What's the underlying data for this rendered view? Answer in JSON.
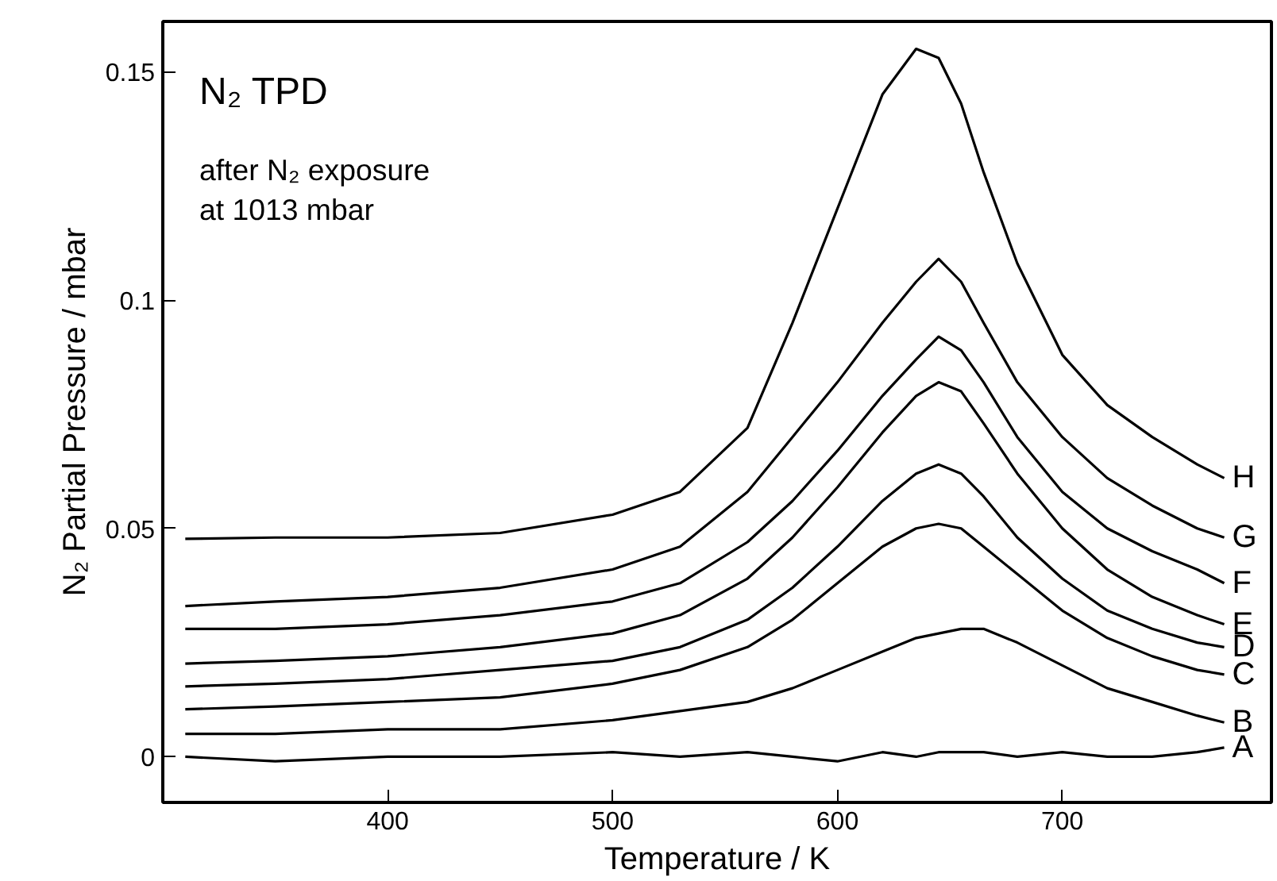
{
  "chart_data": {
    "type": "line",
    "xlabel": "Temperature / K",
    "ylabel": "N₂ Partial Pressure / mbar",
    "annotations": [
      "N₂ TPD",
      "after N₂ exposure",
      "at 1013 mbar"
    ],
    "x": [
      310,
      350,
      400,
      450,
      500,
      530,
      560,
      580,
      600,
      620,
      635,
      645,
      655,
      665,
      680,
      700,
      720,
      740,
      760,
      772
    ],
    "xlim": [
      300,
      793
    ],
    "xticks": [
      400,
      500,
      600,
      700
    ],
    "ylim": [
      -0.01,
      0.161
    ],
    "yticks": [
      0,
      0.05,
      {
        "value": 0.1,
        "label": "0.1"
      },
      0.15
    ],
    "grid": false,
    "legend": false,
    "line_style": "solid",
    "series": [
      {
        "name": "A",
        "color": "#000000",
        "values": [
          0,
          -0.001,
          0,
          0,
          0.001,
          0,
          0.001,
          0,
          -0.001,
          0.001,
          0,
          0.001,
          0.001,
          0.001,
          0,
          0.001,
          0,
          0,
          0.001,
          0.002
        ]
      },
      {
        "name": "B",
        "color": "#000000",
        "values": [
          0.005,
          0.005,
          0.006,
          0.006,
          0.008,
          0.01,
          0.012,
          0.015,
          0.019,
          0.023,
          0.026,
          0.027,
          0.028,
          0.028,
          0.025,
          0.02,
          0.015,
          0.012,
          0.009,
          0.0075
        ]
      },
      {
        "name": "C",
        "color": "#000000",
        "values": [
          0.0104,
          0.011,
          0.012,
          0.013,
          0.016,
          0.019,
          0.024,
          0.03,
          0.038,
          0.046,
          0.05,
          0.051,
          0.05,
          0.046,
          0.04,
          0.032,
          0.026,
          0.022,
          0.019,
          0.018
        ]
      },
      {
        "name": "D",
        "color": "#000000",
        "values": [
          0.0154,
          0.016,
          0.017,
          0.019,
          0.021,
          0.024,
          0.03,
          0.037,
          0.046,
          0.056,
          0.062,
          0.064,
          0.062,
          0.057,
          0.048,
          0.039,
          0.032,
          0.028,
          0.025,
          0.024
        ]
      },
      {
        "name": "E",
        "color": "#000000",
        "values": [
          0.0204,
          0.021,
          0.022,
          0.024,
          0.027,
          0.031,
          0.039,
          0.048,
          0.059,
          0.071,
          0.079,
          0.082,
          0.08,
          0.073,
          0.062,
          0.05,
          0.041,
          0.035,
          0.031,
          0.029
        ]
      },
      {
        "name": "F",
        "color": "#000000",
        "values": [
          0.028,
          0.028,
          0.029,
          0.031,
          0.034,
          0.038,
          0.047,
          0.056,
          0.067,
          0.079,
          0.087,
          0.092,
          0.089,
          0.082,
          0.07,
          0.058,
          0.05,
          0.045,
          0.041,
          0.038
        ]
      },
      {
        "name": "G",
        "color": "#000000",
        "values": [
          0.033,
          0.034,
          0.035,
          0.037,
          0.041,
          0.046,
          0.058,
          0.07,
          0.082,
          0.095,
          0.104,
          0.109,
          0.104,
          0.095,
          0.082,
          0.07,
          0.061,
          0.055,
          0.05,
          0.048
        ]
      },
      {
        "name": "H",
        "color": "#000000",
        "values": [
          0.0477,
          0.048,
          0.048,
          0.049,
          0.053,
          0.058,
          0.072,
          0.095,
          0.12,
          0.145,
          0.155,
          0.153,
          0.143,
          0.128,
          0.108,
          0.088,
          0.077,
          0.07,
          0.064,
          0.061
        ]
      }
    ]
  }
}
